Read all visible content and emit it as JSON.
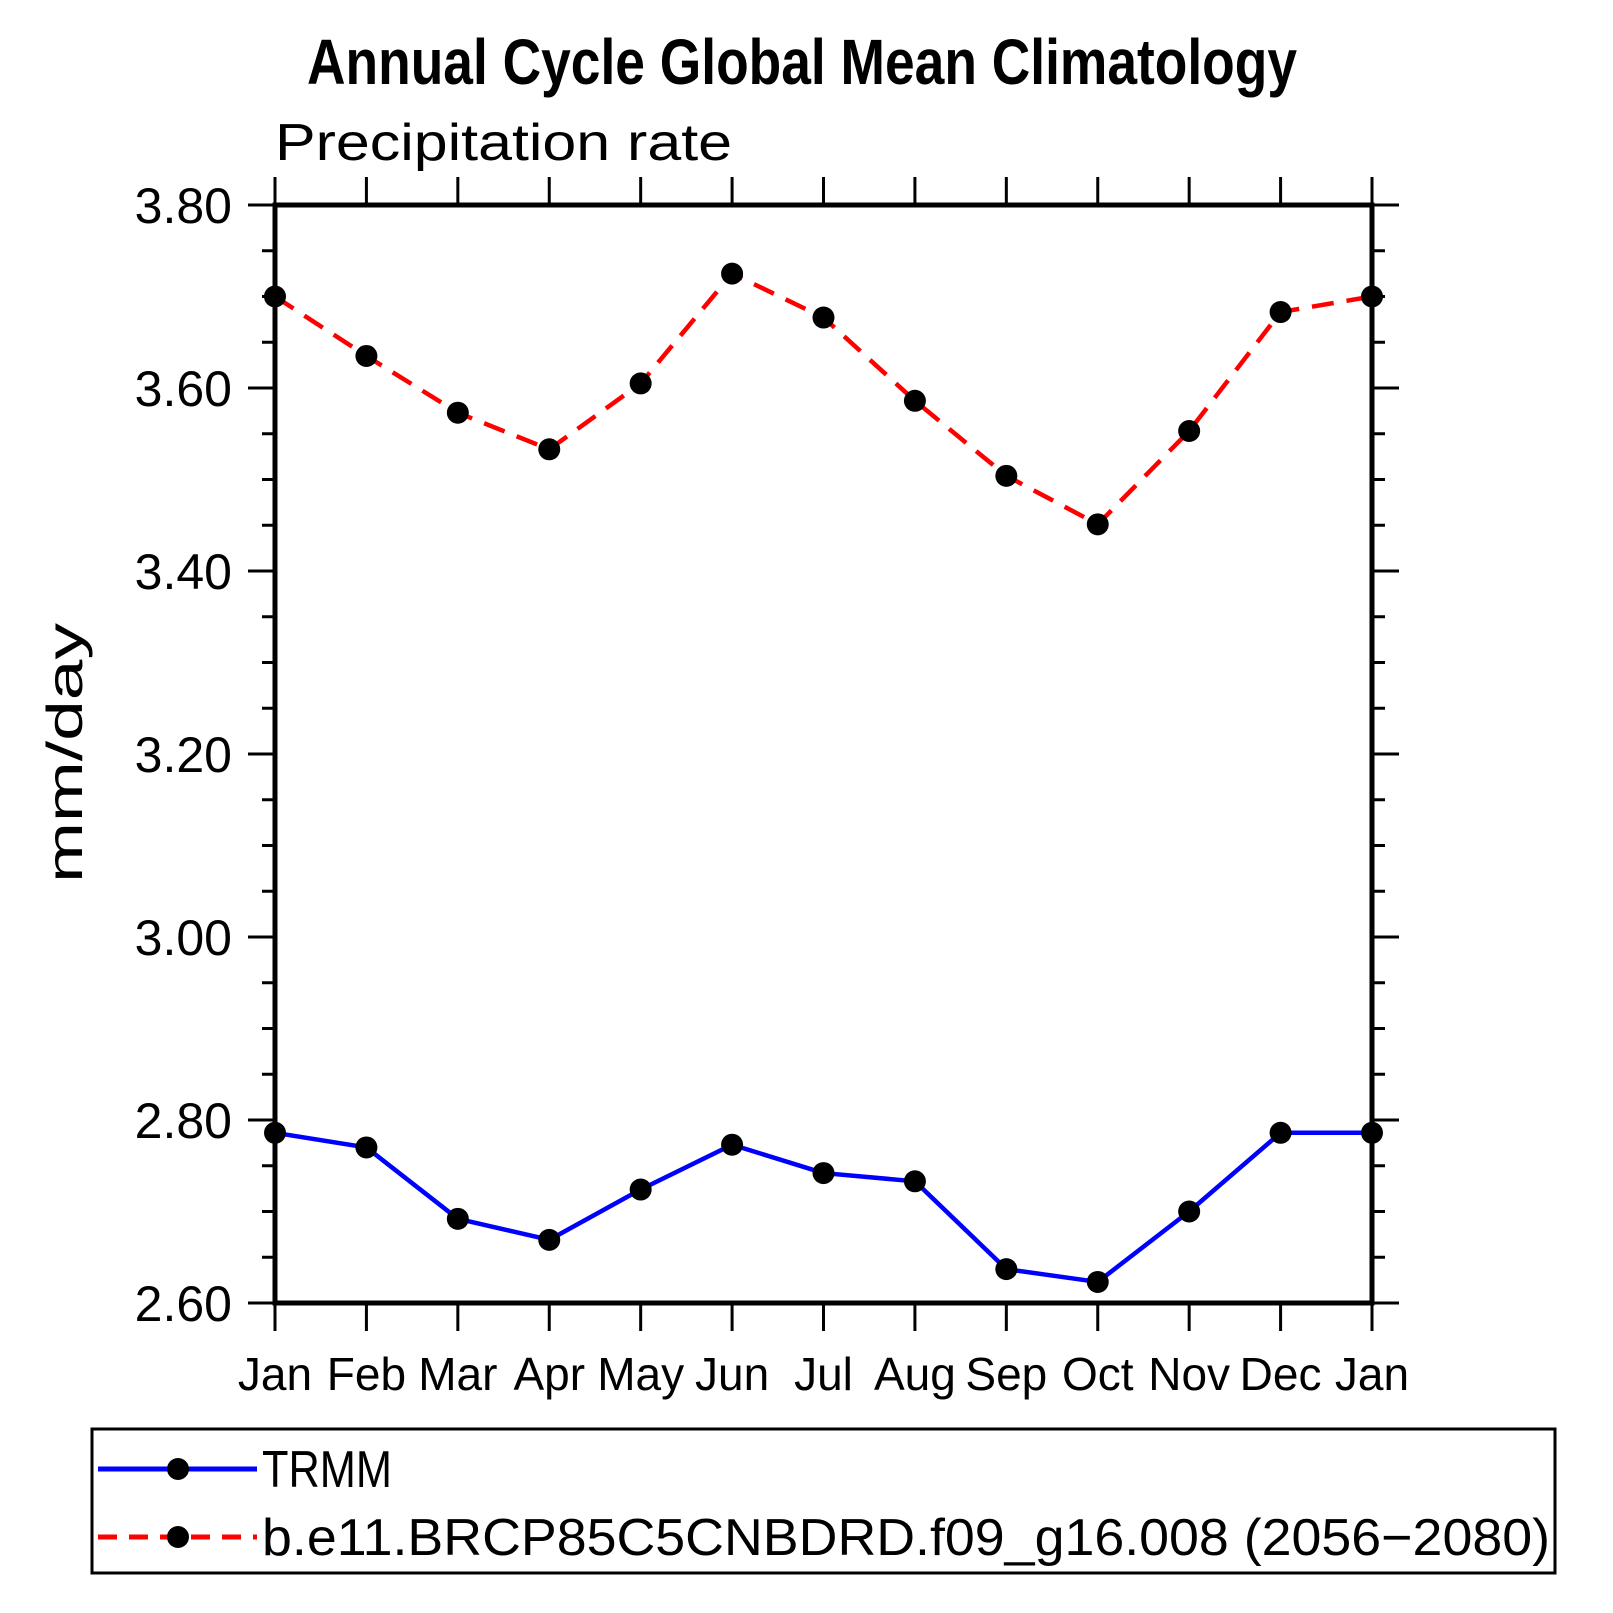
{
  "chart_data": {
    "type": "line",
    "title": "Annual Cycle Global Mean Climatology",
    "subtitle": "Precipitation rate",
    "ylabel": "mm/day",
    "categories": [
      "Jan",
      "Feb",
      "Mar",
      "Apr",
      "May",
      "Jun",
      "Jul",
      "Aug",
      "Sep",
      "Oct",
      "Nov",
      "Dec",
      "Jan"
    ],
    "ylim": [
      2.6,
      3.8
    ],
    "ytick_major": [
      2.6,
      2.8,
      3.0,
      3.2,
      3.4,
      3.6,
      3.8
    ],
    "ytick_labels": [
      "2.60",
      "2.80",
      "3.00",
      "3.20",
      "3.40",
      "3.60",
      "3.80"
    ],
    "ytick_minor_step": 0.05,
    "grid": false,
    "legend_position": "bottom-left-box",
    "axis_color": "#000000",
    "marker_color": "#000000",
    "series": [
      {
        "id": "trmm",
        "name": "TRMM",
        "color": "#0000ff",
        "line_style": "solid",
        "marker": "filled-circle",
        "values": [
          2.786,
          2.77,
          2.692,
          2.669,
          2.724,
          2.773,
          2.742,
          2.733,
          2.637,
          2.623,
          2.7,
          2.786,
          2.786
        ]
      },
      {
        "id": "model",
        "name": "b.e11.BRCP85C5CNBDRD.f09_g16.008 (2056−2080)",
        "color": "#ff0000",
        "line_style": "dashed",
        "marker": "filled-circle",
        "values": [
          3.7,
          3.635,
          3.573,
          3.533,
          3.605,
          3.725,
          3.677,
          3.586,
          3.504,
          3.451,
          3.553,
          3.683,
          3.7
        ]
      }
    ]
  }
}
